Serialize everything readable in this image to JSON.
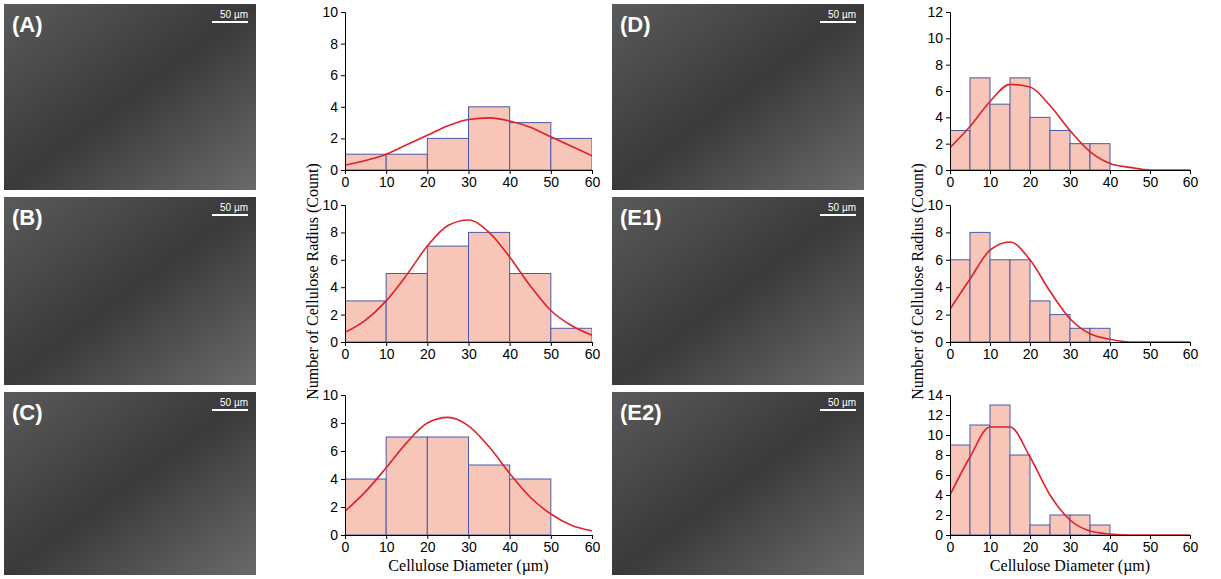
{
  "chart_data": [
    {
      "type": "histogram",
      "xlim": [
        0,
        60
      ],
      "xticks": [
        0,
        10,
        20,
        30,
        40,
        50,
        60
      ],
      "ylim": [
        0,
        10
      ],
      "yticks": [
        0,
        2,
        4,
        6,
        8,
        10
      ],
      "bins": [
        0,
        10,
        20,
        30,
        40,
        50,
        60
      ],
      "series": [
        {
          "type": "bar",
          "color": "#f7c6b8",
          "values": [
            1,
            1,
            2,
            4,
            3,
            2
          ]
        },
        {
          "type": "line",
          "color": "#e0202a",
          "x": [
            0,
            5,
            10,
            15,
            20,
            25,
            30,
            35,
            40,
            45,
            50,
            55,
            60
          ],
          "values": [
            0.3,
            0.6,
            1.0,
            1.6,
            2.2,
            2.8,
            3.2,
            3.3,
            3.1,
            2.7,
            2.1,
            1.5,
            0.9
          ]
        }
      ]
    },
    {
      "type": "histogram",
      "y_label": "Number of Cellulose Radius (Count)",
      "xlim": [
        0,
        60
      ],
      "xticks": [
        0,
        10,
        20,
        30,
        40,
        50,
        60
      ],
      "ylim": [
        0,
        10
      ],
      "yticks": [
        0,
        2,
        4,
        6,
        8,
        10
      ],
      "bins": [
        0,
        10,
        20,
        30,
        40,
        50,
        60
      ],
      "series": [
        {
          "type": "bar",
          "color": "#f7c6b8",
          "values": [
            3,
            5,
            7,
            8,
            5,
            1
          ]
        },
        {
          "type": "line",
          "color": "#e0202a",
          "x": [
            0,
            5,
            10,
            15,
            20,
            25,
            30,
            35,
            40,
            45,
            50,
            55,
            60
          ],
          "values": [
            0.7,
            1.6,
            3.0,
            4.9,
            7.0,
            8.5,
            8.9,
            8.0,
            6.2,
            4.1,
            2.3,
            1.2,
            0.5
          ]
        }
      ]
    },
    {
      "type": "histogram",
      "x_label": "Cellulose Diameter (µm)",
      "xlim": [
        0,
        60
      ],
      "xticks": [
        0,
        10,
        20,
        30,
        40,
        50,
        60
      ],
      "ylim": [
        0,
        10
      ],
      "yticks": [
        0,
        2,
        4,
        6,
        8,
        10
      ],
      "bins": [
        0,
        10,
        20,
        30,
        40,
        50
      ],
      "series": [
        {
          "type": "bar",
          "color": "#f7c6b8",
          "values": [
            4,
            7,
            7,
            5,
            4
          ]
        },
        {
          "type": "line",
          "color": "#e0202a",
          "x": [
            0,
            5,
            10,
            15,
            20,
            25,
            30,
            35,
            40,
            45,
            50,
            55,
            60
          ],
          "values": [
            1.7,
            3.1,
            4.8,
            6.6,
            8.0,
            8.4,
            7.8,
            6.3,
            4.4,
            2.7,
            1.5,
            0.7,
            0.3
          ]
        }
      ]
    },
    {
      "type": "histogram",
      "xlim": [
        0,
        60
      ],
      "xticks": [
        0,
        10,
        20,
        30,
        40,
        50,
        60
      ],
      "ylim": [
        0,
        12
      ],
      "yticks": [
        0,
        2,
        4,
        6,
        8,
        10,
        12
      ],
      "bins": [
        0,
        5,
        10,
        15,
        20,
        25,
        30,
        35,
        40
      ],
      "series": [
        {
          "type": "bar",
          "color": "#f7c6b8",
          "values": [
            3,
            7,
            5,
            7,
            4,
            3,
            2,
            2
          ]
        },
        {
          "type": "line",
          "color": "#e0202a",
          "x": [
            0,
            5,
            10,
            15,
            20,
            25,
            30,
            35,
            40,
            45,
            50,
            55,
            60
          ],
          "values": [
            1.7,
            3.3,
            5.2,
            6.5,
            6.3,
            4.9,
            3.0,
            1.4,
            0.5,
            0.2,
            0.0,
            0.0,
            0.0
          ]
        }
      ]
    },
    {
      "type": "histogram",
      "y_label": "Number of Cellulose Radius (Count)",
      "xlim": [
        0,
        60
      ],
      "xticks": [
        0,
        10,
        20,
        30,
        40,
        50,
        60
      ],
      "ylim": [
        0,
        10
      ],
      "yticks": [
        0,
        2,
        4,
        6,
        8,
        10
      ],
      "bins": [
        0,
        5,
        10,
        15,
        20,
        25,
        30,
        35,
        40
      ],
      "series": [
        {
          "type": "bar",
          "color": "#f7c6b8",
          "values": [
            6,
            8,
            6,
            6,
            3,
            2,
            1,
            1
          ]
        },
        {
          "type": "line",
          "color": "#e0202a",
          "x": [
            0,
            5,
            10,
            15,
            20,
            25,
            30,
            35,
            40,
            45,
            50,
            55,
            60
          ],
          "values": [
            2.4,
            4.6,
            6.7,
            7.3,
            6.0,
            3.7,
            1.7,
            0.6,
            0.2,
            0.0,
            0.0,
            0.0,
            0.0
          ]
        }
      ]
    },
    {
      "type": "histogram",
      "x_label": "Cellulose Diameter (µm)",
      "xlim": [
        0,
        60
      ],
      "xticks": [
        0,
        10,
        20,
        30,
        40,
        50,
        60
      ],
      "ylim": [
        0,
        14
      ],
      "yticks": [
        0,
        2,
        4,
        6,
        8,
        10,
        12,
        14
      ],
      "bins": [
        0,
        5,
        10,
        15,
        20,
        25,
        30,
        35,
        40
      ],
      "series": [
        {
          "type": "bar",
          "color": "#f7c6b8",
          "values": [
            9,
            11,
            13,
            8,
            1,
            2,
            2,
            1
          ]
        },
        {
          "type": "line",
          "color": "#e0202a",
          "x": [
            0,
            5,
            10,
            15,
            20,
            25,
            30,
            35,
            40,
            45,
            50,
            55,
            60
          ],
          "values": [
            4.0,
            7.8,
            10.8,
            10.8,
            7.8,
            4.0,
            1.5,
            0.4,
            0.1,
            0.0,
            0.0,
            0.0,
            0.0
          ]
        }
      ]
    }
  ],
  "images": [
    {
      "label": "(A)",
      "scale_bar": "50 µm"
    },
    {
      "label": "(B)",
      "scale_bar": "50 µm"
    },
    {
      "label": "(C)",
      "scale_bar": "50 µm"
    },
    {
      "label": "(D)",
      "scale_bar": "50 µm"
    },
    {
      "label": "(E1)",
      "scale_bar": "50 µm"
    },
    {
      "label": "(E2)",
      "scale_bar": "50 µm"
    }
  ]
}
